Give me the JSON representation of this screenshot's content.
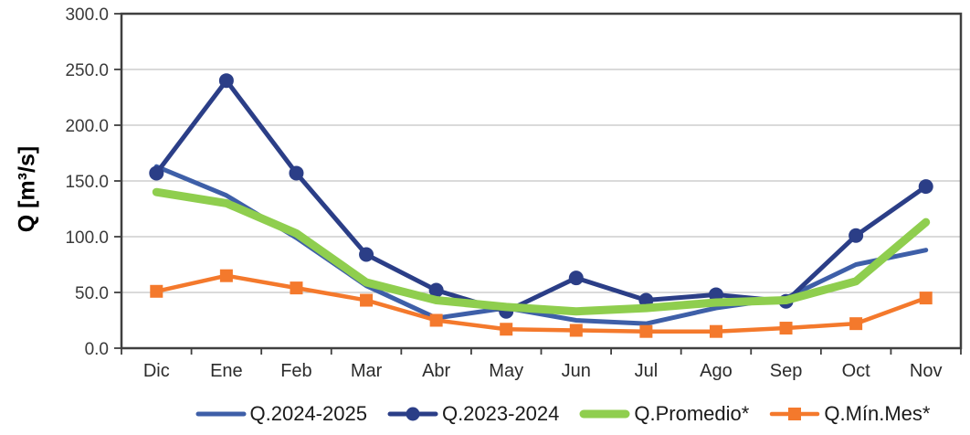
{
  "chart_data": {
    "type": "line",
    "title": "",
    "xlabel": "",
    "ylabel": "Q [m³/s]",
    "ylim": [
      0,
      300
    ],
    "grid": "horizontal",
    "legend_position": "bottom-center",
    "categories": [
      "Dic",
      "Ene",
      "Feb",
      "Mar",
      "Abr",
      "May",
      "Jun",
      "Jul",
      "Ago",
      "Sep",
      "Oct",
      "Nov"
    ],
    "yticks": [
      {
        "value": 0,
        "label": "0.0"
      },
      {
        "value": 50,
        "label": "50.0"
      },
      {
        "value": 100,
        "label": "100.0"
      },
      {
        "value": 150,
        "label": "150.0"
      },
      {
        "value": 200,
        "label": "200.0"
      },
      {
        "value": 250,
        "label": "250.0"
      },
      {
        "value": 300,
        "label": "300.0"
      }
    ],
    "series": [
      {
        "name": "Q.2024-2025",
        "color": "#3e5fa8",
        "marker": "none",
        "line_width": 5,
        "values": [
          163,
          137,
          99,
          56,
          27,
          36,
          25,
          22,
          36,
          45,
          75,
          88
        ]
      },
      {
        "name": "Q.2023-2024",
        "color": "#2b3e87",
        "marker": "circle",
        "line_width": 5,
        "values": [
          157,
          240,
          157,
          84,
          52,
          33,
          63,
          43,
          48,
          42,
          101,
          145
        ]
      },
      {
        "name": "Q.Promedio*",
        "color": "#8fce4e",
        "marker": "none",
        "line_width": 9,
        "values": [
          140,
          130,
          103,
          59,
          43,
          37,
          33,
          36,
          41,
          43,
          60,
          113
        ]
      },
      {
        "name": "Q.Mín.Mes*",
        "color": "#f4792c",
        "marker": "square",
        "line_width": 4.5,
        "values": [
          51,
          65,
          54,
          43,
          25,
          17,
          16,
          15,
          15,
          18,
          22,
          45
        ]
      }
    ],
    "colors": {
      "grid": "#c3c3c3",
      "axis": "#3f3f3f",
      "tick_text": "#3a3a3a",
      "month_text": "#2b2b2b",
      "background": "#ffffff"
    }
  }
}
